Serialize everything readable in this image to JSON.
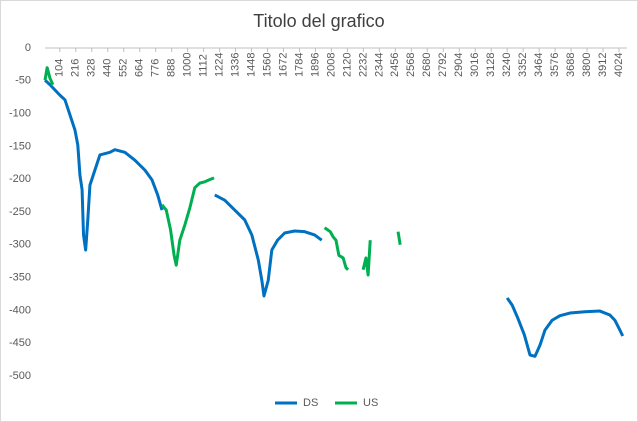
{
  "chart_data": {
    "type": "line",
    "title": "Titolo del grafico",
    "xlim": [
      0,
      4080
    ],
    "xticks": [
      104,
      216,
      328,
      440,
      552,
      664,
      776,
      888,
      1000,
      1112,
      1224,
      1336,
      1448,
      1560,
      1672,
      1784,
      1896,
      2008,
      2120,
      2232,
      2344,
      2456,
      2568,
      2680,
      2792,
      2904,
      3016,
      3128,
      3240,
      3352,
      3464,
      3576,
      3688,
      3800,
      3912,
      4024
    ],
    "ylim": [
      -500,
      0
    ],
    "yticks": [
      -500,
      -450,
      -400,
      -350,
      -300,
      -250,
      -200,
      -150,
      -100,
      -50,
      0
    ],
    "grid": false,
    "legend": "bottom",
    "series": [
      {
        "name": "DS",
        "color": "#0070c0",
        "x": [
          0,
          35,
          70,
          105,
          140,
          175,
          210,
          230,
          245,
          260,
          270,
          285,
          300,
          315,
          350,
          385,
          455,
          490,
          560,
          630,
          700,
          750,
          790,
          820,
          830,
          1190,
          1260,
          1330,
          1400,
          1450,
          1495,
          1520,
          1535,
          1565,
          1590,
          1630,
          1680,
          1750,
          1820,
          1890,
          1940,
          2000,
          3240,
          3275,
          3315,
          3360,
          3400,
          3435,
          3470,
          3505,
          3555,
          3610,
          3680,
          3785,
          3890,
          3960,
          3995,
          4030,
          4050
        ],
        "values": [
          -49,
          -56,
          -64,
          -72,
          -79,
          -102,
          -125,
          -148,
          -194,
          -216,
          -285,
          -308,
          -262,
          -209,
          -186,
          -163,
          -159,
          -155,
          -159,
          -171,
          -186,
          -201,
          -224,
          -247,
          null,
          -224,
          -232,
          -247,
          -262,
          -285,
          -323,
          -354,
          -378,
          -354,
          -308,
          -293,
          -282,
          -279,
          -280,
          -285,
          -293,
          null,
          -381,
          -392,
          -412,
          -437,
          -468,
          -470,
          -453,
          -430,
          -415,
          -408,
          -404,
          -402,
          -401,
          -407,
          -415,
          -430,
          -439
        ]
      },
      {
        "name": "US",
        "color": "#00b050",
        "x": [
          0,
          15,
          35,
          55,
          100,
          820,
          850,
          880,
          905,
          920,
          945,
          980,
          1015,
          1050,
          1085,
          1120,
          1150,
          1185,
          1500,
          1960,
          2000,
          2020,
          2040,
          2060,
          2090,
          2110,
          2125,
          2200,
          2230,
          2250,
          2265,
          2280,
          2400,
          2475,
          2490
        ],
        "values": [
          -49,
          -30,
          -46,
          -56,
          null,
          -239,
          -247,
          -277,
          -316,
          -331,
          -293,
          -270,
          -244,
          -213,
          -206,
          -204,
          -201,
          -198,
          null,
          -274,
          -280,
          -288,
          -293,
          -316,
          -320,
          -335,
          -338,
          null,
          -338,
          -320,
          -346,
          -293,
          null,
          -280,
          -300
        ]
      }
    ]
  }
}
